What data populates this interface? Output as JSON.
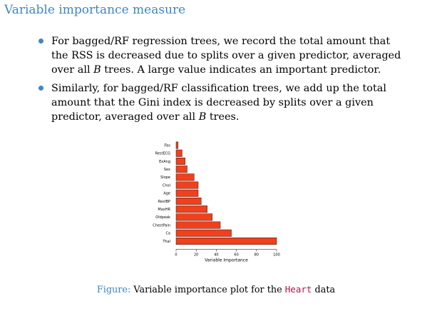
{
  "slide": {
    "title": "Variable importance measure",
    "bullet1": {
      "pre": "For bagged/RF regression trees, we record the total amount that the RSS is decreased due to splits over a given predictor, averaged over all ",
      "var": "B",
      "post": " trees. A large value indicates an important predictor."
    },
    "bullet2": {
      "pre": "Similarly, for bagged/RF classification trees, we add up the total amount that the Gini index is decreased by splits over a given predictor, averaged over all ",
      "var": "B",
      "post": " trees."
    },
    "caption": {
      "label": "Figure:",
      "text": "Variable importance plot for the",
      "code": "Heart",
      "end": "data"
    }
  },
  "chart_data": {
    "type": "bar",
    "orientation": "horizontal",
    "categories": [
      "Fbs",
      "RestECG",
      "ExAng",
      "Sex",
      "Slope",
      "Chol",
      "Age",
      "RestBP",
      "MaxHR",
      "Oldpeak",
      "ChestPain",
      "Ca",
      "Thal"
    ],
    "values": [
      2,
      6,
      9,
      11,
      18,
      22,
      22,
      25,
      31,
      36,
      44,
      55,
      100
    ],
    "xlabel": "Variable Importance",
    "ylabel": "",
    "xlim": [
      0,
      100
    ],
    "xticks": [
      0,
      20,
      40,
      60,
      80,
      100
    ],
    "bar_color": "#f0401c",
    "bar_stroke": "#222222",
    "grid": false
  }
}
